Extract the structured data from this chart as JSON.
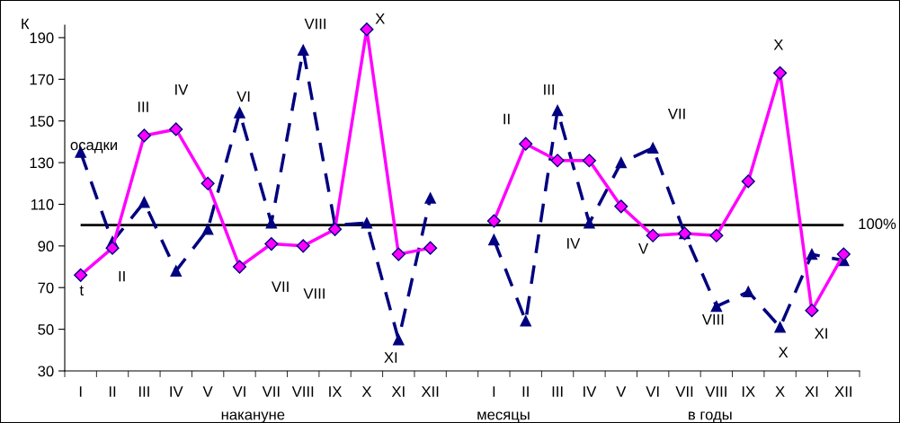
{
  "chart_data": {
    "type": "line",
    "ylabel": "К",
    "categories": [
      "I",
      "II",
      "III",
      "IV",
      "V",
      "VI",
      "VII",
      "VIII",
      "IX",
      "X",
      "XI",
      "XII",
      null,
      "I",
      "II",
      "III",
      "IV",
      "V",
      "VI",
      "VII",
      "VIII",
      "IX",
      "X",
      "XI",
      "XII"
    ],
    "series": [
      {
        "name": "t",
        "color": "#ff00ff",
        "marker": "diamond",
        "line_style": "solid",
        "values": [
          76,
          89,
          143,
          146,
          120,
          80,
          91,
          90,
          98,
          194,
          86,
          89,
          null,
          102,
          139,
          131,
          131,
          109,
          95,
          96,
          95,
          121,
          173,
          59,
          86
        ]
      },
      {
        "name": "осадки",
        "color": "#000080",
        "marker": "triangle",
        "line_style": "dashed",
        "values": [
          135,
          92,
          111,
          78,
          98,
          154,
          101,
          184,
          100,
          101,
          45,
          113,
          null,
          93,
          54,
          155,
          101,
          130,
          137,
          96,
          61,
          68,
          51,
          86,
          83
        ]
      }
    ],
    "ylim": [
      30,
      196
    ],
    "yticks": [
      30,
      50,
      70,
      90,
      110,
      130,
      150,
      170,
      190
    ],
    "ref_lines": [
      {
        "axis": "y",
        "value": 100,
        "label": "100%",
        "color": "#000000"
      }
    ],
    "annotations": [
      "II",
      "III",
      "IV",
      "VI",
      "VII",
      "VIII",
      "VIII",
      "X",
      "XI",
      "II",
      "III",
      "VII",
      "X",
      "IV",
      "V",
      "VIII",
      "X",
      "XI",
      "накануне",
      "месяцы",
      "в годы"
    ],
    "grid": false,
    "legend": false
  }
}
